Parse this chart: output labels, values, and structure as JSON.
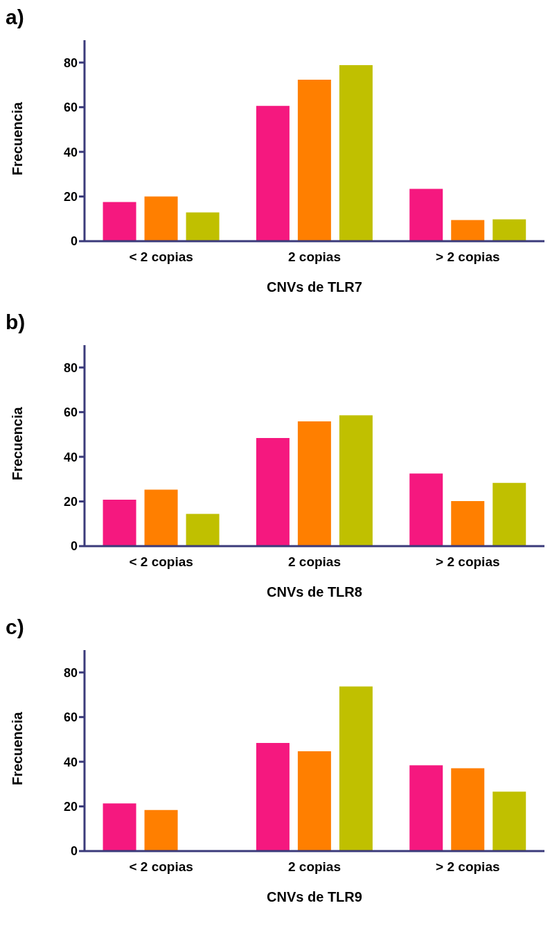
{
  "chart_data": [
    {
      "type": "bar",
      "title": "a)",
      "xlabel": "CNVs de TLR7",
      "ylabel": "Frecuencia",
      "categories": [
        "< 2 copias",
        "2 copias",
        "> 2 copias"
      ],
      "series": [
        {
          "color": "#f5187f",
          "values": [
            17.5,
            60.6,
            23.4
          ]
        },
        {
          "color": "#ff7f00",
          "values": [
            20,
            72.3,
            9.5
          ]
        },
        {
          "color": "#c0c000",
          "values": [
            12.9,
            78.8,
            9.8
          ]
        }
      ],
      "ylim": [
        0,
        90
      ],
      "yticks": [
        0,
        20,
        40,
        60,
        80
      ]
    },
    {
      "type": "bar",
      "title": "b)",
      "xlabel": "CNVs de TLR8",
      "ylabel": "Frecuencia",
      "categories": [
        "< 2 copias",
        "2 copias",
        "> 2 copias"
      ],
      "series": [
        {
          "color": "#f5187f",
          "values": [
            20.8,
            48.4,
            32.5
          ]
        },
        {
          "color": "#ff7f00",
          "values": [
            25.3,
            55.9,
            20.2
          ]
        },
        {
          "color": "#c0c000",
          "values": [
            14.4,
            58.6,
            28.3
          ]
        }
      ],
      "ylim": [
        0,
        90
      ],
      "yticks": [
        0,
        20,
        40,
        60,
        80
      ]
    },
    {
      "type": "bar",
      "title": "c)",
      "xlabel": "CNVs de TLR9",
      "ylabel": "Frecuencia",
      "categories": [
        "< 2 copias",
        "2 copias",
        "> 2 copias"
      ],
      "series": [
        {
          "color": "#f5187f",
          "values": [
            21.3,
            48.4,
            38.4
          ]
        },
        {
          "color": "#ff7f00",
          "values": [
            18.4,
            44.7,
            37.1
          ]
        },
        {
          "color": "#c0c000",
          "values": [
            null,
            73.7,
            26.6
          ]
        }
      ],
      "ylim": [
        0,
        90
      ],
      "yticks": [
        0,
        20,
        40,
        60,
        80
      ]
    }
  ]
}
